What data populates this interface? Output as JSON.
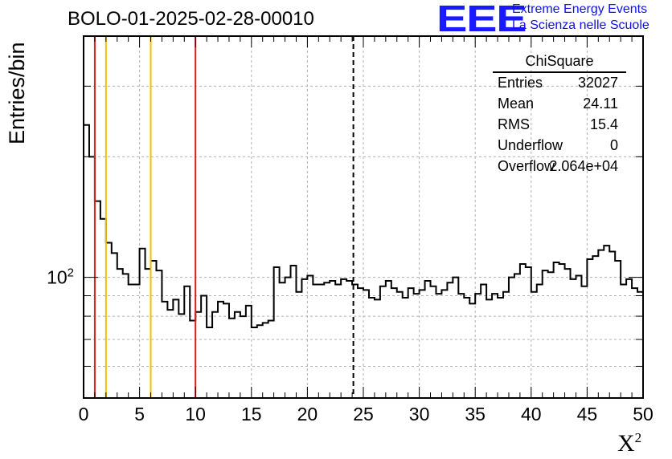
{
  "title": "BOLO-01-2025-02-28-00010",
  "logo": {
    "mark": "EEE",
    "line1": "Extreme Energy Events",
    "line2": "La Scienza nelle Scuole"
  },
  "stats": {
    "title": "ChiSquare",
    "rows": [
      {
        "key": "Entries",
        "value": "32027"
      },
      {
        "key": "Mean",
        "value": "24.11"
      },
      {
        "key": "RMS",
        "value": "15.4"
      },
      {
        "key": "Underflow",
        "value": "0"
      },
      {
        "key": "Overflow",
        "value": "2.064e+04"
      }
    ]
  },
  "chart_data": {
    "type": "histogram",
    "title": "BOLO-01-2025-02-28-00010",
    "xlabel": "X",
    "xlabel_superscript": "2",
    "ylabel": "Entries/bin",
    "xlim": [
      0,
      50
    ],
    "ylim": [
      50,
      400
    ],
    "yscale": "log",
    "bin_width": 0.5,
    "x_ticks": [
      "0",
      "5",
      "10",
      "15",
      "20",
      "25",
      "30",
      "35",
      "40",
      "45",
      "50"
    ],
    "y_tick_label": {
      "base": "10",
      "exp": "2",
      "value": 100
    },
    "grid": true,
    "values": [
      240,
      200,
      155,
      140,
      122,
      115,
      105,
      102,
      96,
      96,
      118,
      105,
      110,
      104,
      87,
      83,
      88,
      81,
      95,
      78,
      82,
      90,
      75,
      82,
      87,
      86,
      79,
      82,
      80,
      85,
      75,
      76,
      77,
      78,
      106,
      97,
      100,
      107,
      92,
      99,
      101,
      96,
      96,
      97,
      98,
      96,
      99,
      98,
      96,
      94,
      93,
      89,
      88,
      95,
      98,
      94,
      92,
      89,
      94,
      91,
      93,
      98,
      95,
      91,
      93,
      97,
      100,
      91,
      89,
      86,
      91,
      96,
      88,
      91,
      89,
      92,
      100,
      102,
      108,
      106,
      92,
      96,
      104,
      103,
      109,
      108,
      105,
      99,
      101,
      95,
      111,
      113,
      117,
      120,
      116,
      110,
      96,
      99,
      94,
      92
    ],
    "vertical_lines": [
      {
        "x": 1,
        "color": "#dd1c1c",
        "style": "solid"
      },
      {
        "x": 2,
        "color": "#f0c000",
        "style": "solid"
      },
      {
        "x": 6,
        "color": "#f0c000",
        "style": "solid"
      },
      {
        "x": 10,
        "color": "#dd1c1c",
        "style": "solid"
      },
      {
        "x": 24.11,
        "color": "#000000",
        "style": "dashed"
      }
    ]
  }
}
